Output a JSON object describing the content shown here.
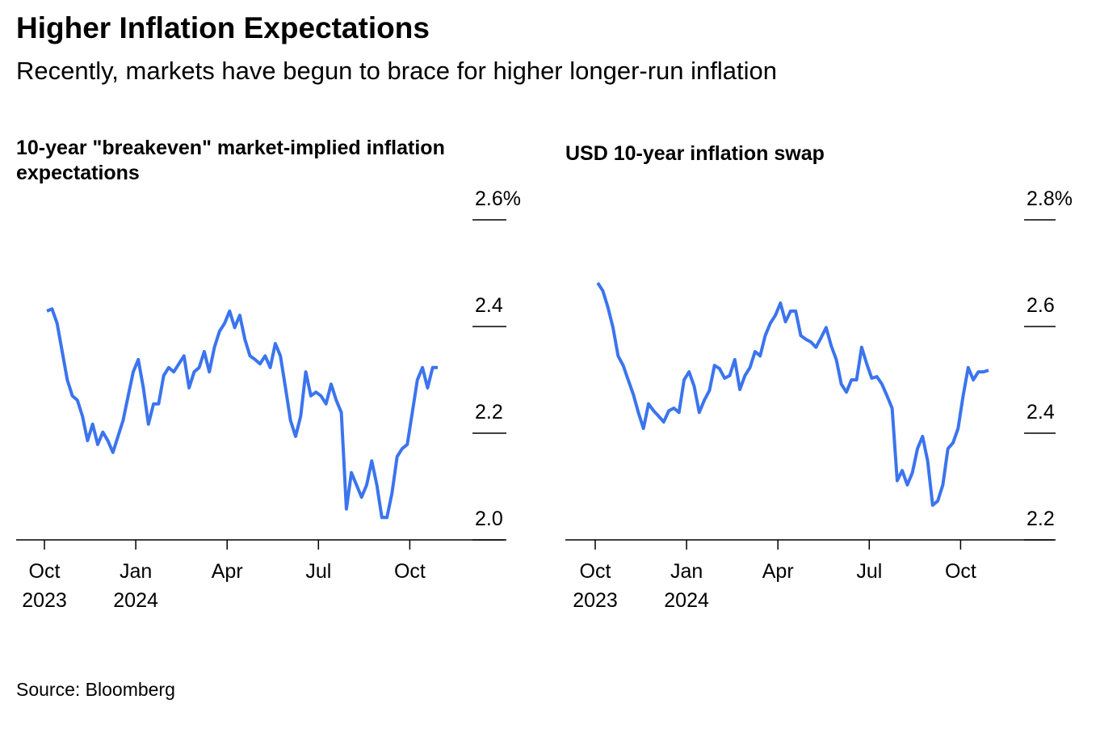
{
  "title": "Higher Inflation Expectations",
  "subtitle": "Recently, markets have begun to brace for higher longer-run inflation",
  "source": "Source: Bloomberg",
  "chart_data": [
    {
      "type": "line",
      "title": "10-year \"breakeven\" market-implied inflation expectations",
      "color": "#3b74ee",
      "x": [
        "2023-10",
        "2023-10",
        "2023-10",
        "2023-10",
        "2023-10",
        "2023-10",
        "2023-11",
        "2023-11",
        "2023-11",
        "2023-11",
        "2023-11",
        "2023-11",
        "2023-12",
        "2023-12",
        "2023-12",
        "2023-12",
        "2023-12",
        "2023-12",
        "2024-01",
        "2024-01",
        "2024-01",
        "2024-01",
        "2024-01",
        "2024-01",
        "2024-02",
        "2024-02",
        "2024-02",
        "2024-02",
        "2024-02",
        "2024-02",
        "2024-03",
        "2024-03",
        "2024-03",
        "2024-03",
        "2024-03",
        "2024-03",
        "2024-04",
        "2024-04",
        "2024-04",
        "2024-04",
        "2024-04",
        "2024-04",
        "2024-05",
        "2024-05",
        "2024-05",
        "2024-05",
        "2024-05",
        "2024-05",
        "2024-06",
        "2024-06",
        "2024-06",
        "2024-06",
        "2024-06",
        "2024-06",
        "2024-07",
        "2024-07",
        "2024-07",
        "2024-07",
        "2024-07",
        "2024-07",
        "2024-08",
        "2024-08",
        "2024-08",
        "2024-08",
        "2024-08",
        "2024-08",
        "2024-09",
        "2024-09",
        "2024-09",
        "2024-09",
        "2024-09",
        "2024-09",
        "2024-10",
        "2024-10",
        "2024-10",
        "2024-10",
        "2024-10",
        "2024-10"
      ],
      "values": [
        2.429,
        2.433,
        2.406,
        2.353,
        2.3,
        2.27,
        2.262,
        2.232,
        2.186,
        2.217,
        2.179,
        2.202,
        2.186,
        2.164,
        2.194,
        2.224,
        2.27,
        2.315,
        2.338,
        2.285,
        2.217,
        2.255,
        2.255,
        2.308,
        2.323,
        2.315,
        2.33,
        2.345,
        2.285,
        2.315,
        2.323,
        2.353,
        2.315,
        2.361,
        2.391,
        2.406,
        2.429,
        2.398,
        2.421,
        2.376,
        2.345,
        2.338,
        2.33,
        2.345,
        2.323,
        2.368,
        2.345,
        2.285,
        2.224,
        2.194,
        2.232,
        2.315,
        2.27,
        2.277,
        2.27,
        2.255,
        2.292,
        2.262,
        2.239,
        2.058,
        2.126,
        2.103,
        2.08,
        2.103,
        2.148,
        2.103,
        2.042,
        2.042,
        2.088,
        2.156,
        2.171,
        2.179,
        2.239,
        2.3,
        2.323,
        2.285,
        2.323,
        2.323
      ],
      "xticks": [
        {
          "value": "2023-10",
          "label": "Oct\n2023"
        },
        {
          "value": "2024-01",
          "label": "Jan\n2024"
        },
        {
          "value": "2024-04",
          "label": "Apr"
        },
        {
          "value": "2024-07",
          "label": "Jul"
        },
        {
          "value": "2024-10",
          "label": "Oct"
        }
      ],
      "ylim": [
        2.0,
        2.6
      ],
      "yticks": [
        {
          "value": 2.0,
          "label": "2.0"
        },
        2.2,
        2.4,
        {
          "value": 2.6,
          "label": "2.6%"
        }
      ]
    },
    {
      "type": "line",
      "title": "USD 10-year inflation swap",
      "color": "#3b74ee",
      "x": [
        "2023-10",
        "2023-10",
        "2023-10",
        "2023-10",
        "2023-10",
        "2023-10",
        "2023-11",
        "2023-11",
        "2023-11",
        "2023-11",
        "2023-11",
        "2023-11",
        "2023-12",
        "2023-12",
        "2023-12",
        "2023-12",
        "2023-12",
        "2023-12",
        "2024-01",
        "2024-01",
        "2024-01",
        "2024-01",
        "2024-01",
        "2024-01",
        "2024-02",
        "2024-02",
        "2024-02",
        "2024-02",
        "2024-02",
        "2024-02",
        "2024-03",
        "2024-03",
        "2024-03",
        "2024-03",
        "2024-03",
        "2024-03",
        "2024-04",
        "2024-04",
        "2024-04",
        "2024-04",
        "2024-04",
        "2024-04",
        "2024-05",
        "2024-05",
        "2024-05",
        "2024-05",
        "2024-05",
        "2024-05",
        "2024-06",
        "2024-06",
        "2024-06",
        "2024-06",
        "2024-06",
        "2024-06",
        "2024-07",
        "2024-07",
        "2024-07",
        "2024-07",
        "2024-07",
        "2024-07",
        "2024-08",
        "2024-08",
        "2024-08",
        "2024-08",
        "2024-08",
        "2024-08",
        "2024-09",
        "2024-09",
        "2024-09",
        "2024-09",
        "2024-09",
        "2024-09",
        "2024-10",
        "2024-10",
        "2024-10",
        "2024-10",
        "2024-10",
        "2024-10"
      ],
      "values": [
        2.682,
        2.667,
        2.636,
        2.598,
        2.545,
        2.527,
        2.5,
        2.473,
        2.439,
        2.409,
        2.455,
        2.442,
        2.432,
        2.421,
        2.442,
        2.447,
        2.439,
        2.5,
        2.515,
        2.488,
        2.439,
        2.462,
        2.48,
        2.527,
        2.521,
        2.503,
        2.508,
        2.538,
        2.482,
        2.508,
        2.523,
        2.553,
        2.545,
        2.583,
        2.606,
        2.621,
        2.644,
        2.609,
        2.629,
        2.629,
        2.583,
        2.576,
        2.571,
        2.561,
        2.579,
        2.598,
        2.564,
        2.538,
        2.492,
        2.477,
        2.5,
        2.5,
        2.561,
        2.53,
        2.503,
        2.506,
        2.492,
        2.47,
        2.447,
        2.311,
        2.33,
        2.303,
        2.326,
        2.371,
        2.394,
        2.348,
        2.265,
        2.273,
        2.303,
        2.371,
        2.382,
        2.409,
        2.47,
        2.523,
        2.5,
        2.515,
        2.515,
        2.518
      ],
      "xticks": [
        {
          "value": "2023-10",
          "label": "Oct\n2023"
        },
        {
          "value": "2024-01",
          "label": "Jan\n2024"
        },
        {
          "value": "2024-04",
          "label": "Apr"
        },
        {
          "value": "2024-07",
          "label": "Jul"
        },
        {
          "value": "2024-10",
          "label": "Oct"
        }
      ],
      "ylim": [
        2.2,
        2.8
      ],
      "yticks": [
        {
          "value": 2.2,
          "label": "2.2"
        },
        2.4,
        2.6,
        {
          "value": 2.8,
          "label": "2.8%"
        }
      ]
    }
  ]
}
